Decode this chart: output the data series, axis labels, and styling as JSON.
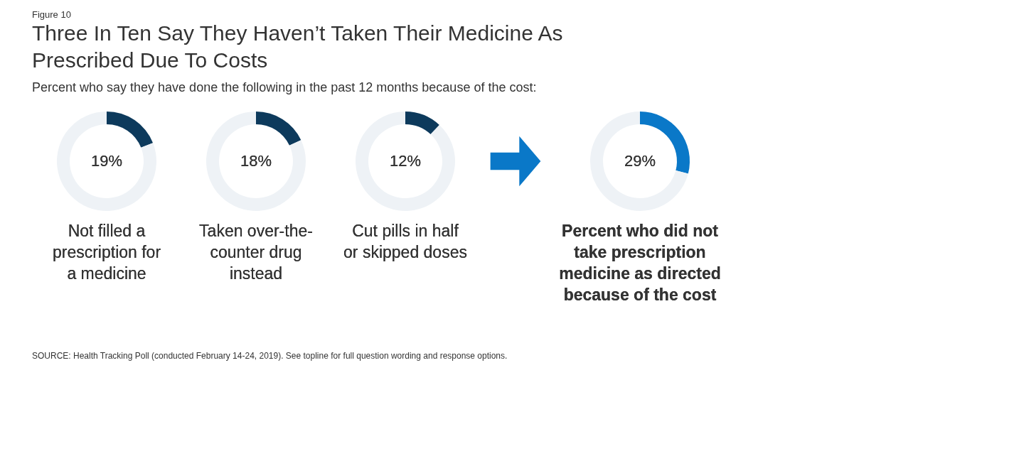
{
  "chart_data": [
    {
      "type": "donut",
      "title": "Three In Ten Say They Haven’t Taken Their Medicine As Prescribed Due To Costs",
      "subtitle": "Percent who say they have done the following in the past 12 months because of the cost:",
      "annotations": [
        "Figure 10",
        "SOURCE: Health Tracking Poll (conducted February 14-24, 2019). See topline for full question wording and response options."
      ],
      "categories": [
        null,
        null
      ],
      "values": [
        19,
        81
      ],
      "colors": [
        "#0d3a5c",
        "#eef2f6"
      ],
      "value_labels": [
        "19%",
        null
      ],
      "xlabel": "Not filled a prescription for a medicine",
      "legend": false
    },
    {
      "type": "donut",
      "categories": [
        null,
        null
      ],
      "values": [
        18,
        82
      ],
      "colors": [
        "#0d3a5c",
        "#eef2f6"
      ],
      "value_labels": [
        "18%",
        null
      ],
      "xlabel": "Taken over-the-counter drug instead",
      "legend": false
    },
    {
      "type": "donut",
      "categories": [
        null,
        null
      ],
      "values": [
        12,
        88
      ],
      "colors": [
        "#0d3a5c",
        "#eef2f6"
      ],
      "value_labels": [
        "12%",
        null
      ],
      "xlabel": "Cut pills in half or skipped doses",
      "legend": false
    },
    {
      "type": "donut",
      "categories": [
        null,
        null
      ],
      "values": [
        29,
        71
      ],
      "colors": [
        "#0a78c8",
        "#eef2f6"
      ],
      "value_labels": [
        "29%",
        null
      ],
      "xlabel": "Percent who did not take prescription medicine as directed because of the cost",
      "legend": false
    }
  ]
}
